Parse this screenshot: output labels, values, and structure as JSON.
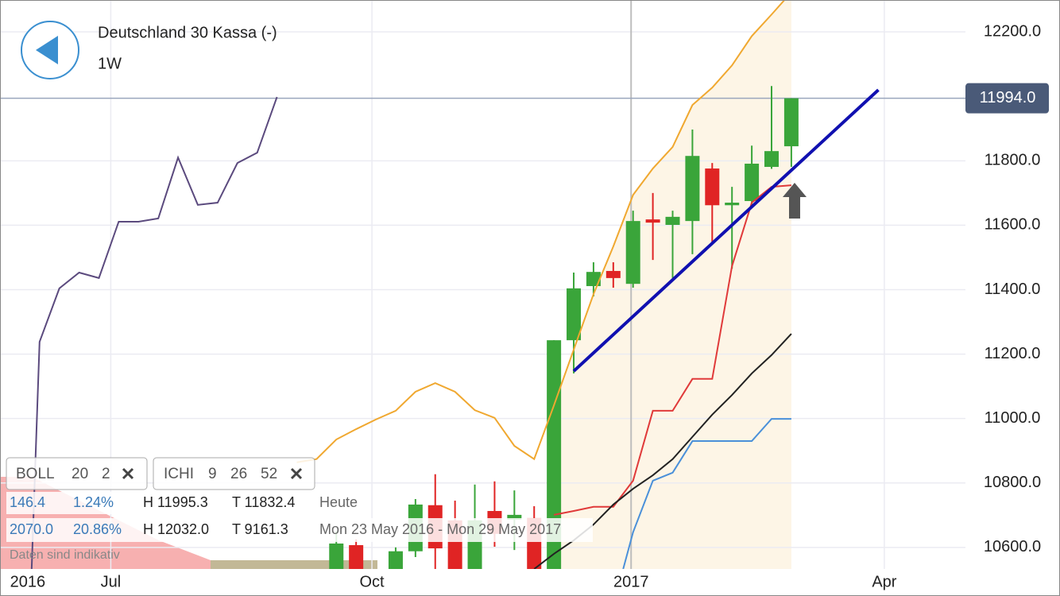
{
  "header": {
    "title": "Deutschland 30 Kassa (-)",
    "interval": "1W"
  },
  "indicators": [
    {
      "name": "BOLL",
      "params": [
        "20",
        "2"
      ]
    },
    {
      "name": "ICHI",
      "params": [
        "9",
        "26",
        "52"
      ]
    }
  ],
  "stats": [
    [
      "146.4",
      "1.24%",
      "H 11995.3",
      "T 11832.4",
      "Heute"
    ],
    [
      "2070.0",
      "20.86%",
      "H 12032.0",
      "T 9161.3",
      "Mon 23 May 2016 - Mon 29 May 2017"
    ]
  ],
  "disclaimer": "Daten sind indikativ",
  "chart_data": {
    "type": "candlestick",
    "xlim": [
      0,
      48.8
    ],
    "ylim": [
      10533,
      12299
    ],
    "xticks": [
      {
        "value": 1.4,
        "label": "2016"
      },
      {
        "value": 5.6,
        "label": "Jul"
      },
      {
        "value": 18.8,
        "label": "Oct"
      },
      {
        "value": 31.9,
        "label": "2017"
      },
      {
        "value": 44.7,
        "label": "Apr"
      }
    ],
    "yticks": [
      {
        "value": 10600,
        "label": "10600.0"
      },
      {
        "value": 10800,
        "label": "10800.0"
      },
      {
        "value": 11000,
        "label": "11000.0"
      },
      {
        "value": 11200,
        "label": "11200.0"
      },
      {
        "value": 11400,
        "label": "11400.0"
      },
      {
        "value": 11600,
        "label": "11600.0"
      },
      {
        "value": 11800,
        "label": "11800.0"
      },
      {
        "value": 12200,
        "label": "12200.0"
      }
    ],
    "grid": true,
    "last_price": {
      "value": 11994,
      "label": "11994.0"
    },
    "up_color": "#3aa53a",
    "down_color": "#e02424",
    "candles": {
      "x": [
        17,
        18,
        20,
        21,
        22,
        23,
        24,
        25,
        26,
        27,
        28,
        29,
        30,
        31,
        32,
        33,
        34,
        35,
        36,
        37,
        38,
        39,
        40
      ],
      "open": [
        10530,
        10607,
        10530,
        10588,
        10731,
        10684,
        10530,
        10713,
        10686,
        10691,
        10500,
        11243,
        11411,
        11458,
        11418,
        11618,
        11601,
        11613,
        11776,
        11662,
        11675,
        11781,
        11845
      ],
      "high": [
        10650,
        10625,
        10600,
        10750,
        10827,
        10745,
        10795,
        10805,
        10777,
        10728,
        11243,
        11453,
        11485,
        11485,
        11645,
        11700,
        11645,
        11897,
        11793,
        11719,
        11847,
        12032,
        11994
      ],
      "low": [
        10500,
        10500,
        10500,
        10570,
        10530,
        10500,
        10500,
        10602,
        10592,
        10480,
        10480,
        11140,
        11379,
        11406,
        11406,
        11492,
        11436,
        11510,
        11547,
        11465,
        11665,
        11775,
        11781
      ],
      "close": [
        10612,
        10520,
        10588,
        10733,
        10597,
        10520,
        10684,
        10642,
        10701,
        10500,
        11243,
        11404,
        11455,
        11436,
        11613,
        11608,
        11626,
        11815,
        11662,
        11670,
        11791,
        11830,
        11994
      ]
    },
    "lines": [
      {
        "color": "#5b4a7e",
        "x": [
          1.6,
          2,
          3,
          4,
          5,
          6,
          7,
          8,
          9,
          10,
          11,
          12,
          13,
          14
        ],
        "values": [
          10533,
          11238,
          11404,
          11453,
          11436,
          11611,
          11611,
          11621,
          11810,
          11663,
          11670,
          11793,
          11825,
          11998
        ]
      },
      {
        "color": "#f0a830",
        "x": [
          15,
          16,
          17,
          18,
          19,
          20,
          21,
          22,
          23,
          24,
          25,
          26,
          27,
          28,
          29,
          30,
          31,
          32,
          33,
          34,
          35,
          36,
          37,
          38,
          39,
          40
        ],
        "values": [
          10864,
          10874,
          10935,
          10967,
          10997,
          11024,
          11083,
          11110,
          11083,
          11026,
          11002,
          10915,
          10874,
          11041,
          11214,
          11386,
          11534,
          11694,
          11776,
          11843,
          11973,
          12027,
          12096,
          12187,
          12254,
          12323
        ]
      },
      {
        "color": "#e03a3a",
        "x": [
          28,
          29,
          30,
          31,
          32,
          33,
          34,
          35,
          36,
          37,
          38,
          39,
          40
        ],
        "values": [
          10701,
          10713,
          10726,
          10726,
          10807,
          11024,
          11024,
          11123,
          11123,
          11473,
          11670,
          11719,
          11724
        ]
      },
      {
        "color": "#222222",
        "x": [
          27,
          28,
          29,
          30,
          31,
          32,
          33,
          34,
          35,
          36,
          37,
          38,
          39,
          40
        ],
        "values": [
          10533,
          10580,
          10622,
          10671,
          10733,
          10782,
          10824,
          10874,
          10943,
          11012,
          11073,
          11140,
          11197,
          11263
        ]
      },
      {
        "color": "#4a90d9",
        "x": [
          31.5,
          32,
          33,
          34,
          35,
          36,
          37,
          38,
          39,
          40
        ],
        "values": [
          10533,
          10647,
          10807,
          10832,
          10930,
          10930,
          10930,
          10930,
          10999,
          10999
        ]
      }
    ],
    "trendline": {
      "color": "#1010b0",
      "x": [
        29,
        44.4
      ],
      "values": [
        11147,
        12020
      ]
    }
  }
}
